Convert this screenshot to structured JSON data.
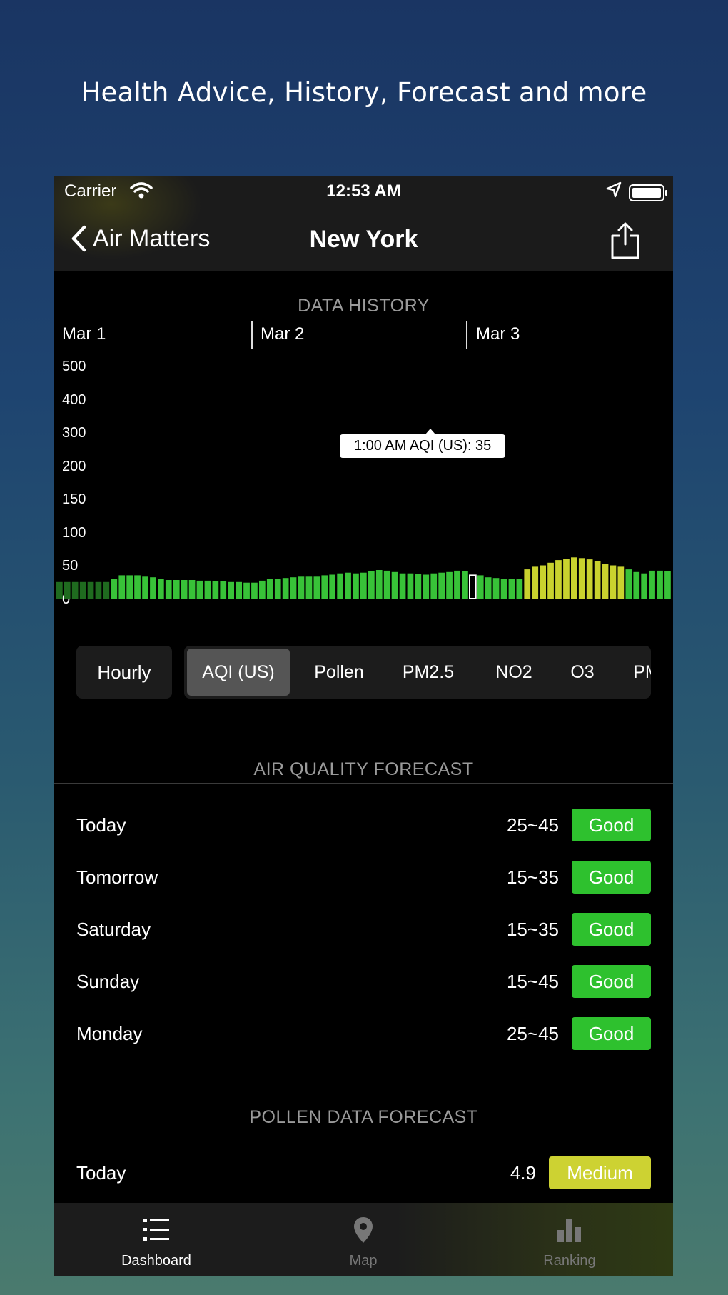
{
  "promo": {
    "title": "Health Advice, History, Forecast and more"
  },
  "status": {
    "carrier": "Carrier",
    "time": "12:53 AM"
  },
  "nav": {
    "back_label": "Air Matters",
    "title": "New York"
  },
  "history": {
    "header": "DATA HISTORY",
    "dates": [
      "Mar 1",
      "Mar 2",
      "Mar 3"
    ],
    "y_ticks": [
      "500",
      "400",
      "300",
      "200",
      "150",
      "100",
      "50",
      "0"
    ],
    "tooltip": "1:00 AM AQI (US): 35",
    "colors": {
      "dark_green": "#1f6b1f",
      "green": "#38c238",
      "yellow": "#c9d22e",
      "selected": "#38c238"
    },
    "chart_data": {
      "type": "bar",
      "ylim": [
        0,
        500
      ],
      "values": [
        25,
        25,
        25,
        25,
        25,
        25,
        25,
        30,
        35,
        35,
        35,
        33,
        32,
        30,
        28,
        28,
        28,
        28,
        27,
        27,
        26,
        26,
        25,
        25,
        24,
        24,
        27,
        29,
        30,
        31,
        32,
        33,
        33,
        33,
        35,
        36,
        38,
        39,
        38,
        39,
        41,
        43,
        42,
        40,
        38,
        38,
        37,
        36,
        38,
        39,
        40,
        42,
        41,
        35,
        35,
        32,
        31,
        30,
        29,
        30,
        44,
        48,
        50,
        54,
        58,
        60,
        62,
        61,
        59,
        56,
        52,
        50,
        48,
        44,
        40,
        38,
        42,
        42,
        41
      ],
      "levels": [
        "d",
        "d",
        "d",
        "d",
        "d",
        "d",
        "d",
        "g",
        "g",
        "g",
        "g",
        "g",
        "g",
        "g",
        "g",
        "g",
        "g",
        "g",
        "g",
        "g",
        "g",
        "g",
        "g",
        "g",
        "g",
        "g",
        "g",
        "g",
        "g",
        "g",
        "g",
        "g",
        "g",
        "g",
        "g",
        "g",
        "g",
        "g",
        "g",
        "g",
        "g",
        "g",
        "g",
        "g",
        "g",
        "g",
        "g",
        "g",
        "g",
        "g",
        "g",
        "g",
        "g",
        "s",
        "g",
        "g",
        "g",
        "g",
        "g",
        "g",
        "y",
        "y",
        "y",
        "y",
        "y",
        "y",
        "y",
        "y",
        "y",
        "y",
        "y",
        "y",
        "y",
        "g",
        "g",
        "g",
        "g",
        "g",
        "g"
      ]
    }
  },
  "segmented": {
    "hourly": "Hourly",
    "metrics": [
      "AQI (US)",
      "Pollen",
      "PM2.5",
      "NO2",
      "O3",
      "PM"
    ],
    "active_index": 0
  },
  "aq_forecast": {
    "header": "AIR QUALITY FORECAST",
    "rows": [
      {
        "day": "Today",
        "range": "25~45",
        "level": "Good"
      },
      {
        "day": "Tomorrow",
        "range": "15~35",
        "level": "Good"
      },
      {
        "day": "Saturday",
        "range": "15~35",
        "level": "Good"
      },
      {
        "day": "Sunday",
        "range": "15~45",
        "level": "Good"
      },
      {
        "day": "Monday",
        "range": "25~45",
        "level": "Good"
      }
    ],
    "badge_color": "#2ec12e"
  },
  "pollen_forecast": {
    "header": "POLLEN DATA FORECAST",
    "rows": [
      {
        "day": "Today",
        "value": "4.9",
        "level": "Medium"
      }
    ],
    "badge_color": "#cdd232"
  },
  "tabbar": {
    "tabs": [
      {
        "label": "Dashboard",
        "icon": "list-icon"
      },
      {
        "label": "Map",
        "icon": "map-pin-icon"
      },
      {
        "label": "Ranking",
        "icon": "bar-chart-icon"
      }
    ],
    "active_index": 0
  }
}
